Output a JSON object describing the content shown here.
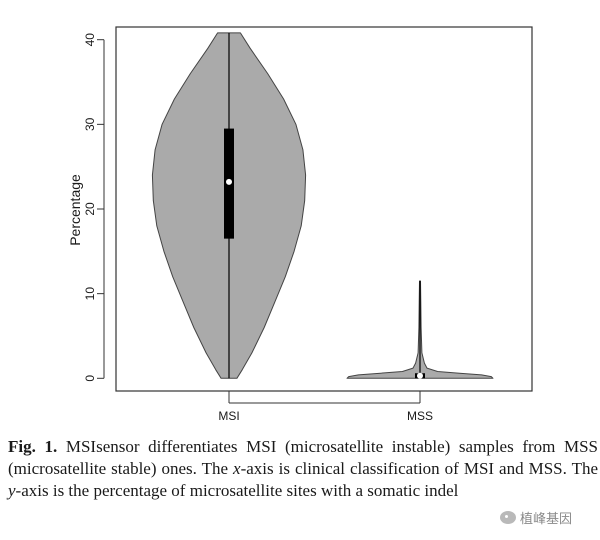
{
  "chart_data": {
    "type": "violin",
    "title": "",
    "xlabel": "",
    "ylabel": "Percentage",
    "ylim": [
      -1.5,
      41.5
    ],
    "yticks": [
      0,
      10,
      20,
      30,
      40
    ],
    "categories": [
      "MSI",
      "MSS"
    ],
    "violins": [
      {
        "name": "MSI",
        "min": 0,
        "max": 40.8,
        "q1": 16.5,
        "median": 23.2,
        "q3": 29.5,
        "half_width_profile": [
          [
            0,
            0.9
          ],
          [
            1,
            1.5
          ],
          [
            3,
            2.6
          ],
          [
            6,
            4.0
          ],
          [
            9,
            5.2
          ],
          [
            12,
            6.4
          ],
          [
            15,
            7.4
          ],
          [
            18,
            8.2
          ],
          [
            21,
            8.6
          ],
          [
            24,
            8.7
          ],
          [
            27,
            8.4
          ],
          [
            30,
            7.6
          ],
          [
            33,
            6.2
          ],
          [
            36,
            4.4
          ],
          [
            39,
            2.4
          ],
          [
            40.8,
            1.3
          ]
        ]
      },
      {
        "name": "MSS",
        "min": 0,
        "max": 11.5,
        "q1": 0,
        "median": 0.3,
        "q3": 0.6,
        "half_width_profile": [
          [
            0,
            8.3
          ],
          [
            0.2,
            8.1
          ],
          [
            0.4,
            7.0
          ],
          [
            0.6,
            4.5
          ],
          [
            0.8,
            2.0
          ],
          [
            1.2,
            0.8
          ],
          [
            1.8,
            0.5
          ],
          [
            3,
            0.22
          ],
          [
            6,
            0.12
          ],
          [
            9,
            0.09
          ],
          [
            11.5,
            0.06
          ]
        ]
      }
    ]
  },
  "caption": {
    "fig_label": "Fig. 1.",
    "text_1": " MSIsensor differentiates MSI (microsatellite instable) samples from MSS (microsatellite stable) ones. The ",
    "x_var": "x",
    "text_2": "-axis is clinical classification of MSI and MSS. The ",
    "y_var": "y",
    "text_3": "-axis is the percentage of microsatellite sites with a somatic indel"
  },
  "watermark": {
    "text": "植峰基因"
  },
  "colors": {
    "violin_fill": "#aaaaaa",
    "outline": "#444444",
    "box": "#000000",
    "median_dot": "#ffffff",
    "axis": "#333333"
  }
}
